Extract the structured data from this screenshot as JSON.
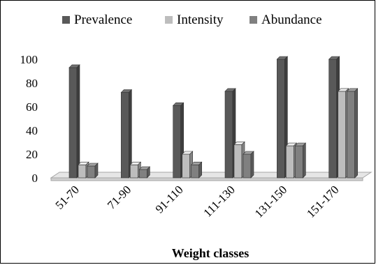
{
  "chart_data": {
    "type": "bar",
    "title": "",
    "xlabel": "Weight classes",
    "ylabel": "",
    "ylim": [
      0,
      100
    ],
    "yticks": [
      "0",
      "20",
      "40",
      "60",
      "80",
      "100"
    ],
    "categories": [
      "51-70",
      "71-90",
      "91-110",
      "111-130",
      "131-150",
      "151-170"
    ],
    "series": [
      {
        "name": "Prevalence",
        "color": "#595959",
        "values": [
          93,
          72,
          61,
          73,
          100,
          100
        ]
      },
      {
        "name": "Intensity",
        "color": "#bdbdbd",
        "values": [
          11,
          11,
          20,
          28,
          27,
          73
        ]
      },
      {
        "name": "Abundance",
        "color": "#808080",
        "values": [
          10,
          7,
          11,
          20,
          27,
          73
        ]
      }
    ],
    "legend_position": "top",
    "grid": false,
    "style": "3d-column"
  }
}
